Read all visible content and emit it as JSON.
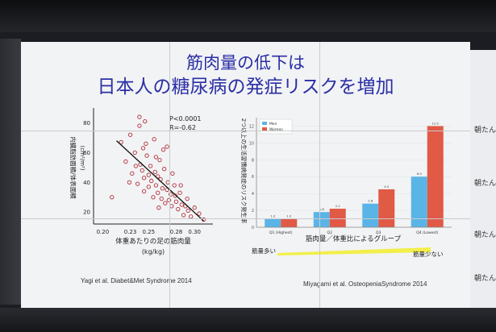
{
  "slide": {
    "title_line1": "筋肉量の低下は",
    "title_line2": "日本人の糖尿病の発症リスクを増加",
    "citation_left": "Yagi et al. Diabet&Met Syndrome 2014",
    "citation_right": "Miyagami et al. OsteopeniaSyndrome 2014",
    "side_text_1": "朝たん",
    "side_text_2": "朝たん",
    "side_text_3": "朝たん",
    "side_text_4": "朝たん",
    "colors": {
      "title": "#2a2fa5",
      "men": "#5ab4e6",
      "women": "#e05a46",
      "scatter": "#b0303a"
    }
  },
  "chart_data": [
    {
      "type": "scatter",
      "stats": "P<0.0001\nR=-0.62",
      "stat_p": "P<0.0001",
      "stat_r": "R=-0.62",
      "xlabel_line1": "体重あたりの足の筋肉量",
      "xlabel_line2": "(kg/kg)",
      "ylabel": "内臓脂肪面積/体表面積",
      "ylabel_unit": "(cm²/m²)",
      "x_ticks": [
        "0.20",
        "0.23",
        "0.25",
        "0.28",
        "0.30"
      ],
      "y_ticks": [
        "20",
        "40",
        "60",
        "80"
      ],
      "xlim": [
        0.19,
        0.32
      ],
      "ylim": [
        12,
        90
      ],
      "points": [
        [
          0.21,
          30
        ],
        [
          0.22,
          67
        ],
        [
          0.225,
          54
        ],
        [
          0.23,
          72
        ],
        [
          0.232,
          46
        ],
        [
          0.235,
          60
        ],
        [
          0.238,
          39
        ],
        [
          0.24,
          84
        ],
        [
          0.24,
          78
        ],
        [
          0.241,
          52
        ],
        [
          0.243,
          48
        ],
        [
          0.245,
          43
        ],
        [
          0.245,
          34
        ],
        [
          0.247,
          66
        ],
        [
          0.248,
          58
        ],
        [
          0.25,
          45
        ],
        [
          0.25,
          37
        ],
        [
          0.252,
          51
        ],
        [
          0.253,
          41
        ],
        [
          0.255,
          30
        ],
        [
          0.256,
          69
        ],
        [
          0.257,
          47
        ],
        [
          0.258,
          38
        ],
        [
          0.26,
          44
        ],
        [
          0.26,
          33
        ],
        [
          0.262,
          55
        ],
        [
          0.263,
          42
        ],
        [
          0.264,
          29
        ],
        [
          0.265,
          36
        ],
        [
          0.267,
          49
        ],
        [
          0.268,
          26
        ],
        [
          0.27,
          35
        ],
        [
          0.27,
          64
        ],
        [
          0.271,
          40
        ],
        [
          0.272,
          28
        ],
        [
          0.274,
          32
        ],
        [
          0.275,
          24
        ],
        [
          0.276,
          46
        ],
        [
          0.278,
          38
        ],
        [
          0.28,
          27
        ],
        [
          0.282,
          22
        ],
        [
          0.284,
          33
        ],
        [
          0.286,
          25
        ],
        [
          0.288,
          18
        ],
        [
          0.29,
          24
        ],
        [
          0.293,
          21
        ],
        [
          0.296,
          17
        ],
        [
          0.3,
          23
        ],
        [
          0.305,
          19
        ],
        [
          0.31,
          15
        ],
        [
          0.246,
          81
        ],
        [
          0.236,
          51
        ],
        [
          0.258,
          57
        ],
        [
          0.266,
          62
        ],
        [
          0.244,
          63
        ],
        [
          0.279,
          31
        ],
        [
          0.229,
          40
        ],
        [
          0.285,
          38
        ],
        [
          0.261,
          23
        ],
        [
          0.292,
          29
        ]
      ],
      "trend": [
        [
          0.215,
          68
        ],
        [
          0.31,
          14
        ]
      ]
    },
    {
      "type": "bar",
      "categories": [
        "Q1 (Highest)",
        "Q2",
        "Q3",
        "Q4 (Lowest)"
      ],
      "series": [
        {
          "name": "Men",
          "values": [
            1.0,
            1.8,
            2.8,
            6.0
          ]
        },
        {
          "name": "Women",
          "values": [
            1.0,
            2.2,
            4.5,
            12.0
          ]
        }
      ],
      "value_labels_men": [
        "1.0",
        "1.8",
        "2.8",
        "6.0"
      ],
      "value_labels_women": [
        "1.0",
        "2.2",
        "4.5",
        "12.0"
      ],
      "y_ticks": [
        "0",
        "2",
        "4",
        "6",
        "8",
        "10",
        "12"
      ],
      "ylim": [
        0,
        13
      ],
      "ylabel": "2つ以上の生活習慣病発症のリスク発生率",
      "xlabel": "筋肉量／体重比によるグループ",
      "legend": "top-left",
      "annotation_left": "筋量多い",
      "annotation_right": "筋量少ない"
    }
  ]
}
